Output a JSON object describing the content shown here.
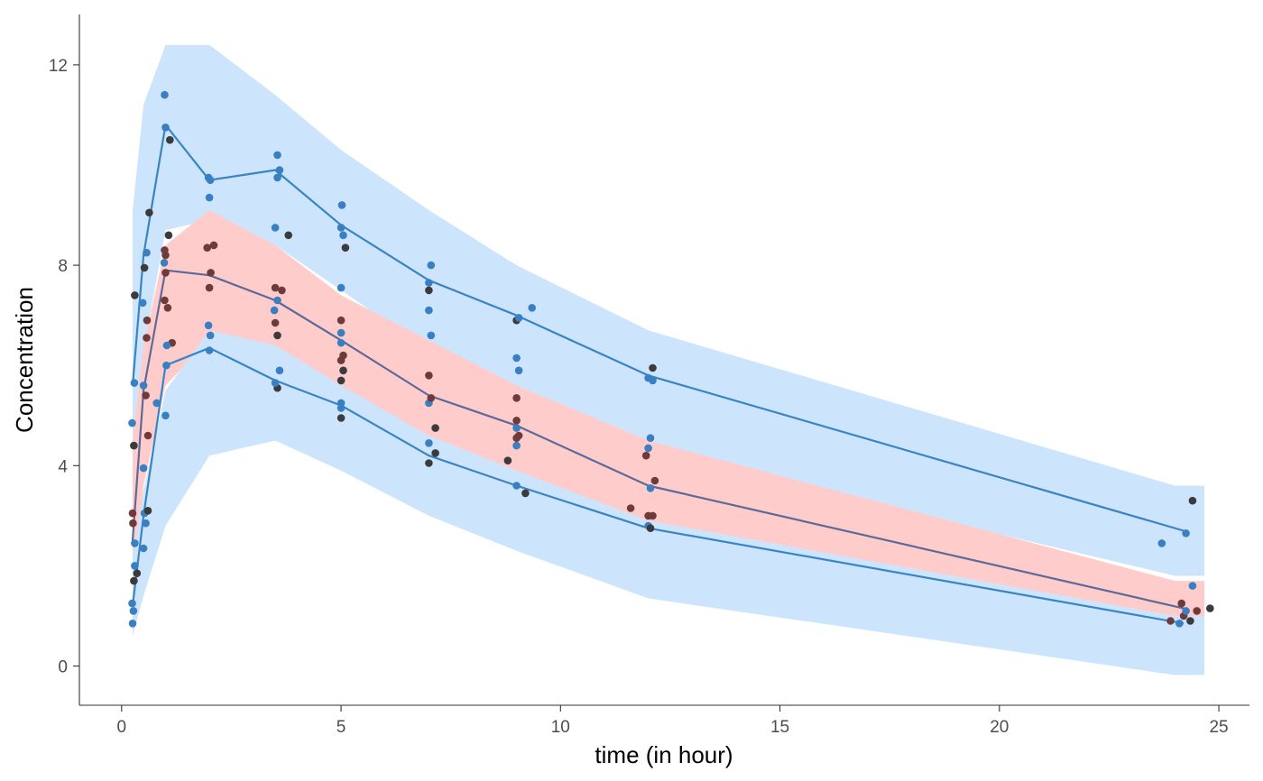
{
  "chart_data": {
    "type": "scatter",
    "xlabel": "time (in hour)",
    "ylabel": "Concentration",
    "xlim": [
      -1,
      25.5
    ],
    "ylim": [
      -0.8,
      13
    ],
    "x_ticks": [
      0,
      5,
      10,
      15,
      20,
      25
    ],
    "x_tick_labels": [
      "0",
      "5",
      "10",
      "15",
      "20",
      "25"
    ],
    "y_ticks": [
      0,
      4,
      8,
      12
    ],
    "y_tick_labels": [
      "0",
      "4",
      "8",
      "12"
    ],
    "grid": false,
    "legend": "none",
    "colors": {
      "blue_band": "#cce5fd",
      "red_band": "#ffcccc",
      "blue_line": "#3a84c4",
      "median_line": "#5c6a98",
      "red_fill": "#f31f24",
      "blue_point": "#3a7fc1",
      "dark_point": "#3b3b3b",
      "red_point": "#6e3a3a"
    },
    "bands": [
      {
        "name": "upper PI",
        "color": "blue",
        "x": [
          0.25,
          0.5,
          1,
          2,
          3.5,
          5,
          7,
          9,
          12,
          24,
          24.67
        ],
        "low": [
          4.5,
          6.3,
          8.7,
          8.9,
          8.4,
          7.5,
          6.3,
          5.4,
          4.3,
          1.8,
          1.8
        ],
        "high": [
          9.1,
          11.2,
          12.4,
          12.4,
          11.4,
          10.3,
          9.1,
          8.0,
          6.7,
          3.6,
          3.6
        ]
      },
      {
        "name": "median PI",
        "color": "red",
        "x": [
          0.25,
          0.5,
          1,
          2,
          3.5,
          5,
          7,
          9,
          12,
          24,
          24.67
        ],
        "low": [
          1.5,
          3.6,
          5.6,
          6.5,
          6.2,
          5.5,
          4.4,
          3.6,
          2.7,
          0.8,
          0.8
        ],
        "high": [
          4.5,
          6.4,
          8.4,
          9.1,
          8.4,
          7.4,
          6.5,
          5.6,
          4.5,
          1.7,
          1.7
        ]
      },
      {
        "name": "lower PI",
        "color": "blue",
        "x": [
          0.25,
          0.5,
          1,
          2,
          3.5,
          5,
          7,
          9,
          12,
          24,
          24.67
        ],
        "low": [
          0.6,
          1.4,
          2.8,
          4.2,
          4.5,
          3.9,
          3.0,
          2.3,
          1.35,
          -0.18,
          -0.18
        ],
        "high": [
          2.2,
          3.5,
          5.5,
          6.7,
          6.4,
          5.6,
          4.6,
          3.9,
          2.9,
          1.0,
          1.0
        ]
      }
    ],
    "series": [
      {
        "name": "upper observed",
        "x": [
          0.25,
          0.5,
          1,
          2,
          3.5,
          5,
          7,
          9,
          12,
          24.2
        ],
        "values": [
          5.6,
          8.2,
          10.8,
          9.7,
          9.9,
          8.8,
          7.7,
          7.0,
          5.8,
          2.7
        ]
      },
      {
        "name": "median observed",
        "x": [
          0.25,
          0.5,
          1,
          2,
          3.5,
          5,
          7,
          9,
          12,
          24.2
        ],
        "values": [
          2.5,
          5.5,
          7.9,
          7.8,
          7.3,
          6.5,
          5.4,
          4.8,
          3.6,
          1.15
        ]
      },
      {
        "name": "lower observed",
        "x": [
          0.25,
          0.5,
          1,
          2,
          3.5,
          5,
          7,
          9,
          12,
          24.2
        ],
        "values": [
          1.2,
          3.0,
          6.0,
          6.35,
          5.7,
          5.2,
          4.2,
          3.6,
          2.75,
          0.85
        ]
      }
    ],
    "points": [
      {
        "x": 0.25,
        "y": 0.85,
        "c": "blue"
      },
      {
        "x": 0.27,
        "y": 1.1,
        "c": "blue"
      },
      {
        "x": 0.24,
        "y": 1.25,
        "c": "blue"
      },
      {
        "x": 0.28,
        "y": 1.7,
        "c": "dark"
      },
      {
        "x": 0.3,
        "y": 2.0,
        "c": "blue"
      },
      {
        "x": 0.35,
        "y": 1.85,
        "c": "dark"
      },
      {
        "x": 0.3,
        "y": 2.45,
        "c": "blue"
      },
      {
        "x": 0.26,
        "y": 2.85,
        "c": "red"
      },
      {
        "x": 0.25,
        "y": 3.05,
        "c": "red"
      },
      {
        "x": 0.28,
        "y": 4.4,
        "c": "dark"
      },
      {
        "x": 0.24,
        "y": 4.85,
        "c": "blue"
      },
      {
        "x": 0.29,
        "y": 5.65,
        "c": "blue"
      },
      {
        "x": 0.3,
        "y": 7.4,
        "c": "dark"
      },
      {
        "x": 0.5,
        "y": 2.35,
        "c": "blue"
      },
      {
        "x": 0.55,
        "y": 2.85,
        "c": "blue"
      },
      {
        "x": 0.52,
        "y": 3.05,
        "c": "blue"
      },
      {
        "x": 0.6,
        "y": 3.1,
        "c": "dark"
      },
      {
        "x": 0.5,
        "y": 3.95,
        "c": "blue"
      },
      {
        "x": 0.6,
        "y": 4.6,
        "c": "red"
      },
      {
        "x": 0.55,
        "y": 5.4,
        "c": "red"
      },
      {
        "x": 0.5,
        "y": 5.6,
        "c": "blue"
      },
      {
        "x": 0.57,
        "y": 6.55,
        "c": "red"
      },
      {
        "x": 0.58,
        "y": 6.9,
        "c": "red"
      },
      {
        "x": 0.48,
        "y": 7.25,
        "c": "blue"
      },
      {
        "x": 0.52,
        "y": 7.95,
        "c": "dark"
      },
      {
        "x": 0.57,
        "y": 8.25,
        "c": "blue"
      },
      {
        "x": 0.63,
        "y": 9.05,
        "c": "dark"
      },
      {
        "x": 0.8,
        "y": 5.25,
        "c": "blue"
      },
      {
        "x": 1.0,
        "y": 5.0,
        "c": "blue"
      },
      {
        "x": 1.02,
        "y": 6.0,
        "c": "blue"
      },
      {
        "x": 1.15,
        "y": 6.45,
        "c": "red"
      },
      {
        "x": 1.03,
        "y": 6.4,
        "c": "blue"
      },
      {
        "x": 1.05,
        "y": 7.15,
        "c": "red"
      },
      {
        "x": 0.98,
        "y": 7.3,
        "c": "red"
      },
      {
        "x": 1.0,
        "y": 7.85,
        "c": "red"
      },
      {
        "x": 0.97,
        "y": 8.05,
        "c": "blue"
      },
      {
        "x": 1.0,
        "y": 8.2,
        "c": "red"
      },
      {
        "x": 0.98,
        "y": 8.3,
        "c": "red"
      },
      {
        "x": 1.07,
        "y": 8.6,
        "c": "dark"
      },
      {
        "x": 1.0,
        "y": 10.75,
        "c": "blue"
      },
      {
        "x": 1.1,
        "y": 10.5,
        "c": "dark"
      },
      {
        "x": 0.98,
        "y": 11.4,
        "c": "blue"
      },
      {
        "x": 2.0,
        "y": 6.3,
        "c": "blue"
      },
      {
        "x": 2.02,
        "y": 6.6,
        "c": "blue"
      },
      {
        "x": 1.98,
        "y": 6.8,
        "c": "blue"
      },
      {
        "x": 2.0,
        "y": 7.55,
        "c": "red"
      },
      {
        "x": 2.03,
        "y": 7.85,
        "c": "red"
      },
      {
        "x": 1.95,
        "y": 8.35,
        "c": "red"
      },
      {
        "x": 2.1,
        "y": 8.4,
        "c": "red"
      },
      {
        "x": 2.0,
        "y": 9.35,
        "c": "blue"
      },
      {
        "x": 2.02,
        "y": 9.7,
        "c": "blue"
      },
      {
        "x": 1.98,
        "y": 9.75,
        "c": "blue"
      },
      {
        "x": 3.55,
        "y": 5.55,
        "c": "dark"
      },
      {
        "x": 3.5,
        "y": 5.65,
        "c": "blue"
      },
      {
        "x": 3.6,
        "y": 5.9,
        "c": "blue"
      },
      {
        "x": 3.55,
        "y": 6.6,
        "c": "dark"
      },
      {
        "x": 3.5,
        "y": 6.85,
        "c": "red"
      },
      {
        "x": 3.48,
        "y": 7.1,
        "c": "blue"
      },
      {
        "x": 3.55,
        "y": 7.3,
        "c": "blue"
      },
      {
        "x": 3.5,
        "y": 7.55,
        "c": "red"
      },
      {
        "x": 3.65,
        "y": 7.5,
        "c": "red"
      },
      {
        "x": 3.8,
        "y": 8.6,
        "c": "dark"
      },
      {
        "x": 3.5,
        "y": 8.75,
        "c": "blue"
      },
      {
        "x": 3.55,
        "y": 9.75,
        "c": "blue"
      },
      {
        "x": 3.6,
        "y": 9.9,
        "c": "blue"
      },
      {
        "x": 3.55,
        "y": 10.2,
        "c": "blue"
      },
      {
        "x": 5.0,
        "y": 4.95,
        "c": "dark"
      },
      {
        "x": 5.0,
        "y": 5.15,
        "c": "blue"
      },
      {
        "x": 5.0,
        "y": 5.25,
        "c": "blue"
      },
      {
        "x": 5.0,
        "y": 5.7,
        "c": "dark"
      },
      {
        "x": 5.05,
        "y": 5.9,
        "c": "dark"
      },
      {
        "x": 5.0,
        "y": 6.1,
        "c": "red"
      },
      {
        "x": 5.05,
        "y": 6.2,
        "c": "red"
      },
      {
        "x": 5.0,
        "y": 6.45,
        "c": "blue"
      },
      {
        "x": 5.0,
        "y": 6.65,
        "c": "blue"
      },
      {
        "x": 5.0,
        "y": 6.9,
        "c": "red"
      },
      {
        "x": 5.0,
        "y": 7.55,
        "c": "blue"
      },
      {
        "x": 5.1,
        "y": 8.35,
        "c": "dark"
      },
      {
        "x": 5.05,
        "y": 8.6,
        "c": "blue"
      },
      {
        "x": 5.0,
        "y": 8.75,
        "c": "blue"
      },
      {
        "x": 5.02,
        "y": 9.2,
        "c": "blue"
      },
      {
        "x": 7.0,
        "y": 4.05,
        "c": "dark"
      },
      {
        "x": 7.0,
        "y": 4.45,
        "c": "blue"
      },
      {
        "x": 7.15,
        "y": 4.25,
        "c": "dark"
      },
      {
        "x": 7.15,
        "y": 4.75,
        "c": "dark"
      },
      {
        "x": 7.0,
        "y": 5.25,
        "c": "blue"
      },
      {
        "x": 7.05,
        "y": 5.35,
        "c": "red"
      },
      {
        "x": 7.0,
        "y": 5.8,
        "c": "red"
      },
      {
        "x": 7.05,
        "y": 6.6,
        "c": "blue"
      },
      {
        "x": 7.0,
        "y": 7.1,
        "c": "blue"
      },
      {
        "x": 7.0,
        "y": 7.5,
        "c": "dark"
      },
      {
        "x": 7.0,
        "y": 7.65,
        "c": "blue"
      },
      {
        "x": 7.05,
        "y": 8.0,
        "c": "blue"
      },
      {
        "x": 8.8,
        "y": 4.1,
        "c": "dark"
      },
      {
        "x": 9.0,
        "y": 3.6,
        "c": "blue"
      },
      {
        "x": 9.2,
        "y": 3.45,
        "c": "dark"
      },
      {
        "x": 9.0,
        "y": 4.4,
        "c": "blue"
      },
      {
        "x": 9.0,
        "y": 4.55,
        "c": "red"
      },
      {
        "x": 9.05,
        "y": 4.6,
        "c": "red"
      },
      {
        "x": 9.0,
        "y": 4.75,
        "c": "blue"
      },
      {
        "x": 9.0,
        "y": 4.9,
        "c": "red"
      },
      {
        "x": 9.0,
        "y": 5.35,
        "c": "red"
      },
      {
        "x": 9.05,
        "y": 5.9,
        "c": "blue"
      },
      {
        "x": 9.0,
        "y": 6.15,
        "c": "blue"
      },
      {
        "x": 9.0,
        "y": 6.9,
        "c": "dark"
      },
      {
        "x": 9.05,
        "y": 6.95,
        "c": "blue"
      },
      {
        "x": 9.35,
        "y": 7.15,
        "c": "blue"
      },
      {
        "x": 11.6,
        "y": 3.15,
        "c": "red"
      },
      {
        "x": 12.0,
        "y": 2.8,
        "c": "blue"
      },
      {
        "x": 12.05,
        "y": 2.75,
        "c": "dark"
      },
      {
        "x": 12.0,
        "y": 3.0,
        "c": "red"
      },
      {
        "x": 12.1,
        "y": 3.0,
        "c": "red"
      },
      {
        "x": 12.05,
        "y": 3.55,
        "c": "blue"
      },
      {
        "x": 12.15,
        "y": 3.7,
        "c": "red"
      },
      {
        "x": 11.95,
        "y": 4.2,
        "c": "red"
      },
      {
        "x": 12.0,
        "y": 4.35,
        "c": "blue"
      },
      {
        "x": 12.05,
        "y": 4.55,
        "c": "blue"
      },
      {
        "x": 12.0,
        "y": 5.75,
        "c": "blue"
      },
      {
        "x": 12.1,
        "y": 5.7,
        "c": "blue"
      },
      {
        "x": 12.1,
        "y": 5.95,
        "c": "dark"
      },
      {
        "x": 23.7,
        "y": 2.45,
        "c": "blue"
      },
      {
        "x": 23.9,
        "y": 0.9,
        "c": "red"
      },
      {
        "x": 24.1,
        "y": 0.85,
        "c": "blue"
      },
      {
        "x": 24.2,
        "y": 1.0,
        "c": "red"
      },
      {
        "x": 24.15,
        "y": 1.25,
        "c": "red"
      },
      {
        "x": 24.25,
        "y": 1.1,
        "c": "blue"
      },
      {
        "x": 24.35,
        "y": 0.9,
        "c": "dark"
      },
      {
        "x": 24.4,
        "y": 1.6,
        "c": "blue"
      },
      {
        "x": 24.5,
        "y": 1.1,
        "c": "red"
      },
      {
        "x": 24.8,
        "y": 1.15,
        "c": "dark"
      },
      {
        "x": 24.25,
        "y": 2.65,
        "c": "blue"
      },
      {
        "x": 24.4,
        "y": 3.3,
        "c": "dark"
      }
    ]
  }
}
